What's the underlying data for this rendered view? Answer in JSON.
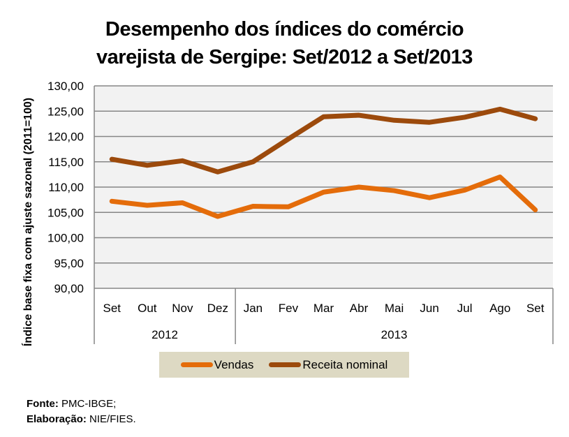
{
  "chart_data": {
    "type": "line",
    "title": [
      "Desempenho dos índices do comércio",
      "varejista de Sergipe: Set/2012 a Set/2013"
    ],
    "ylabel": "Índice base fixa com ajuste sazonal  (2011=100)",
    "xlabel": "",
    "ylim": [
      90,
      130
    ],
    "yticks": [
      "130,00",
      "125,00",
      "120,00",
      "115,00",
      "110,00",
      "105,00",
      "100,00",
      "95,00",
      "90,00"
    ],
    "ytick_values": [
      130,
      125,
      120,
      115,
      110,
      105,
      100,
      95,
      90
    ],
    "grid": true,
    "categories": [
      "Set",
      "Out",
      "Nov",
      "Dez",
      "Jan",
      "Fev",
      "Mar",
      "Abr",
      "Mai",
      "Jun",
      "Jul",
      "Ago",
      "Set"
    ],
    "category_groups": [
      {
        "label": "2012",
        "count": 4
      },
      {
        "label": "2013",
        "count": 9
      }
    ],
    "series": [
      {
        "name": "Vendas",
        "color": "#E46C0A",
        "values": [
          107.2,
          106.4,
          106.9,
          104.2,
          106.2,
          106.1,
          109.0,
          110.0,
          109.3,
          107.9,
          109.4,
          112.0,
          105.5
        ]
      },
      {
        "name": "Receita nominal",
        "color": "#9C4A0C",
        "values": [
          115.5,
          114.3,
          115.2,
          113.0,
          115.0,
          119.5,
          123.9,
          124.2,
          123.2,
          122.8,
          123.8,
          125.4,
          123.5
        ]
      }
    ],
    "legend_position": "bottom"
  },
  "footer": {
    "source_label": "Fonte:",
    "source_value": "PMC-IBGE;",
    "credit_label": "Elaboração:",
    "credit_value": "NIE/FIES."
  },
  "colors": {
    "plot_background": "#F2F2F2",
    "gridline": "#868686",
    "legend_background": "#DDD9C3"
  }
}
